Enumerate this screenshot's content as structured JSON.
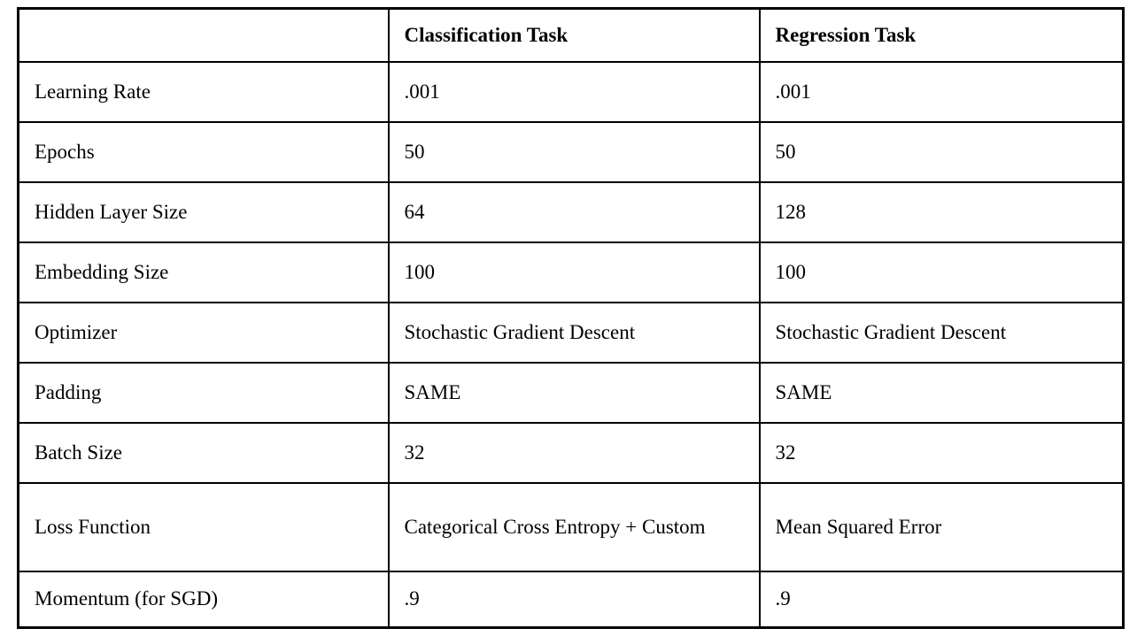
{
  "table": {
    "header": {
      "label_col": "",
      "classification": "Classification Task",
      "regression": "Regression Task"
    },
    "rows": [
      {
        "label": "Learning Rate",
        "classification": ".001",
        "regression": ".001"
      },
      {
        "label": "Epochs",
        "classification": "50",
        "regression": "50"
      },
      {
        "label": "Hidden Layer Size",
        "classification": "64",
        "regression": "128"
      },
      {
        "label": "Embedding Size",
        "classification": "100",
        "regression": "100"
      },
      {
        "label": "Optimizer",
        "classification": "Stochastic Gradient Descent",
        "regression": "Stochastic Gradient Descent"
      },
      {
        "label": "Padding",
        "classification": "SAME",
        "regression": "SAME"
      },
      {
        "label": "Batch Size",
        "classification": "32",
        "regression": "32"
      },
      {
        "label": "Loss Function",
        "classification": "Categorical Cross Entropy + Custom",
        "regression": "Mean Squared Error"
      },
      {
        "label": "Momentum (for SGD)",
        "classification": ".9",
        "regression": ".9"
      }
    ],
    "colors": {
      "border": "#000000",
      "background": "#ffffff",
      "text": "#000000"
    }
  }
}
